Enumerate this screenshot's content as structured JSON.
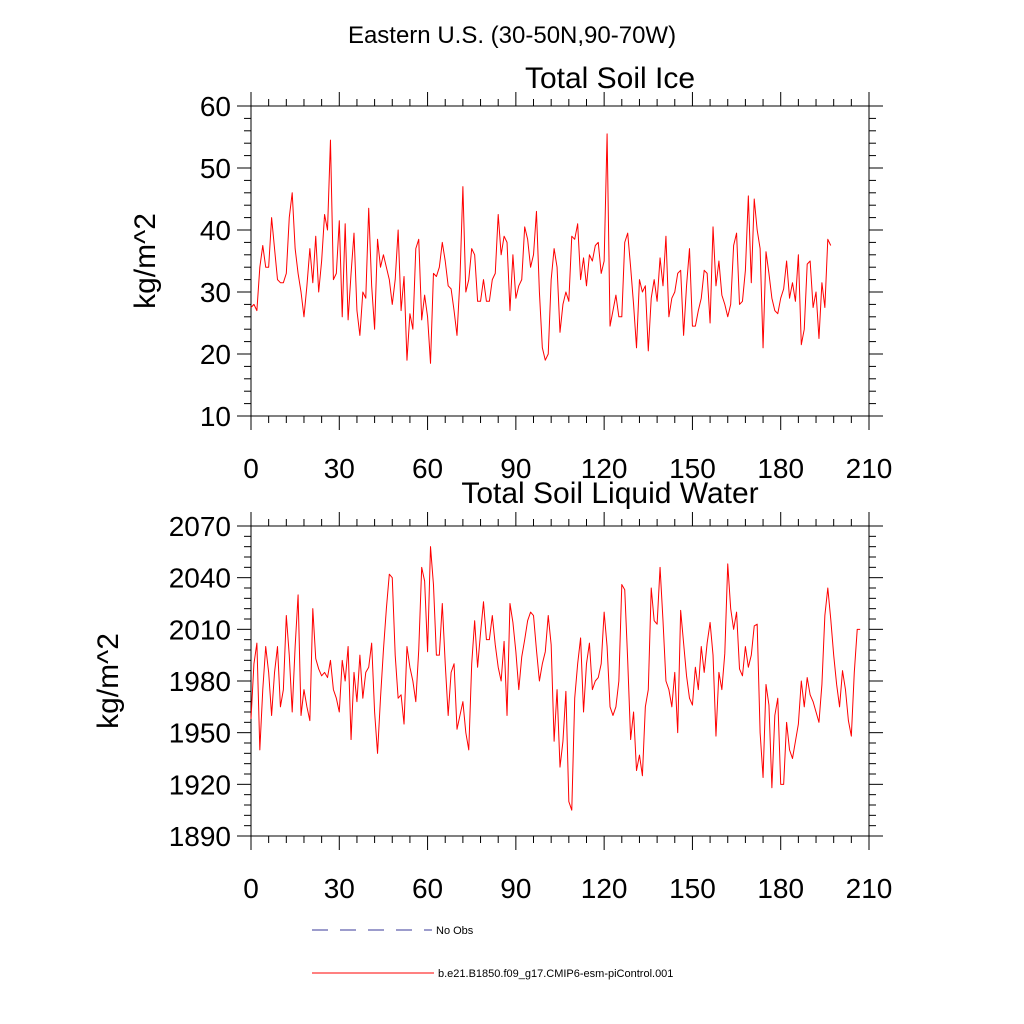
{
  "figure": {
    "suptitle": "Eastern U.S. (30-50N,90-70W)"
  },
  "colors": {
    "model": "#ff0000",
    "obs": "#3a3a9a",
    "axis": "#000000"
  },
  "legend": {
    "obs_label": "No Obs",
    "model_label": "b.e21.B1850.f09_g17.CMIP6-esm-piControl.001",
    "placement": "bottom-center"
  },
  "chart_data": [
    {
      "type": "line",
      "title": "Total Soil Ice",
      "xlabel": "",
      "ylabel": "kg/m^2",
      "xlim": [
        0,
        210
      ],
      "ylim": [
        10,
        60
      ],
      "xticks": [
        0,
        30,
        60,
        90,
        120,
        150,
        180,
        210
      ],
      "yticks": [
        10,
        20,
        30,
        40,
        50,
        60
      ],
      "x_start": 0,
      "series": [
        {
          "name": "b.e21.B1850.f09_g17.CMIP6-esm-piControl.001",
          "values": [
            27.5,
            28,
            27,
            34,
            37.5,
            34,
            34,
            42,
            37,
            32,
            31.5,
            31.5,
            33,
            42,
            46,
            37,
            33,
            30,
            26,
            31,
            37,
            31.5,
            39,
            30,
            35,
            42.5,
            40,
            54.5,
            32,
            33,
            41.5,
            26,
            41,
            25.5,
            33,
            39.5,
            27,
            23,
            30,
            29,
            43.5,
            31,
            24,
            38.5,
            34,
            36,
            34,
            32,
            28,
            32,
            40,
            27,
            32.5,
            19,
            26.5,
            24,
            37,
            38.5,
            25.5,
            29.5,
            26,
            18.5,
            33,
            32.5,
            34,
            38,
            35,
            31,
            30.5,
            27,
            23,
            32,
            47,
            30,
            32,
            37,
            36,
            28.5,
            28.5,
            32,
            28.5,
            28.5,
            32,
            33,
            42.5,
            36,
            39,
            38,
            27,
            36,
            29,
            31,
            32,
            40.5,
            38.5,
            34,
            36,
            43,
            30,
            21,
            19,
            20,
            32,
            37,
            34,
            23.5,
            28,
            30,
            28.5,
            39,
            38.5,
            41,
            32,
            35.5,
            31,
            36,
            35,
            37.5,
            38,
            33,
            35,
            55.5,
            24.5,
            27,
            29.5,
            26,
            26,
            38,
            39.5,
            34,
            28,
            21,
            32,
            30,
            31,
            20.5,
            29,
            32,
            28.5,
            35.5,
            31,
            39,
            26,
            29,
            30,
            33,
            33.5,
            23,
            31,
            37,
            24.5,
            24.5,
            27,
            29,
            33.5,
            33,
            25,
            40.5,
            31,
            35,
            29.5,
            28,
            26,
            28,
            37.5,
            39.5,
            28,
            28.5,
            33.5,
            45.5,
            31.5,
            45,
            40,
            37,
            21,
            36.5,
            33,
            29,
            27,
            26.5,
            29,
            30.5,
            35,
            29,
            31.5,
            28.5,
            36,
            21.5,
            24,
            34.5,
            35,
            27.5,
            30,
            22.5,
            31.5,
            27.5,
            38.5,
            37.5
          ]
        }
      ]
    },
    {
      "type": "line",
      "title": "Total Soil Liquid Water",
      "xlabel": "",
      "ylabel": "kg/m^2",
      "xlim": [
        0,
        210
      ],
      "ylim": [
        1890,
        2070
      ],
      "xticks": [
        0,
        30,
        60,
        90,
        120,
        150,
        180,
        210
      ],
      "yticks": [
        1890,
        1920,
        1950,
        1980,
        2010,
        2040,
        2070
      ],
      "x_start": 0,
      "series": [
        {
          "name": "b.e21.B1850.f09_g17.CMIP6-esm-piControl.001",
          "values": [
            1958,
            1990,
            2002,
            1940,
            1975,
            2000,
            1985,
            1960,
            1985,
            2000,
            1965,
            1975,
            2018,
            1995,
            1962,
            2000,
            2030,
            1960,
            1975,
            1965,
            1957,
            2022,
            1993,
            1987,
            1983,
            1985,
            1982,
            1992,
            1975,
            1970,
            1962,
            1992,
            1980,
            2000,
            1946,
            1985,
            1968,
            1995,
            1970,
            1985,
            1988,
            2002,
            1962,
            1938,
            1970,
            1998,
            2022,
            2042,
            2040,
            1995,
            1970,
            1972,
            1955,
            2000,
            1988,
            1980,
            1968,
            1998,
            2046,
            2038,
            1997,
            2058,
            2036,
            1995,
            1995,
            2025,
            1990,
            1960,
            1985,
            1990,
            1952,
            1960,
            1968,
            1950,
            1940,
            1990,
            2015,
            1988,
            2008,
            2026,
            2004,
            2004,
            2018,
            2001,
            1988,
            1980,
            2003,
            1960,
            2025,
            2014,
            1997,
            1975,
            1994,
            2004,
            2015,
            2020,
            2018,
            1998,
            1980,
            1990,
            1997,
            2018,
            2001,
            1945,
            1975,
            1930,
            1945,
            1974,
            1910,
            1905,
            1970,
            1990,
            2005,
            1962,
            1990,
            2002,
            1975,
            1980,
            1982,
            1990,
            2020,
            2000,
            1965,
            1960,
            1965,
            1980,
            2036,
            2033,
            1992,
            1946,
            1962,
            1928,
            1937,
            1925,
            1965,
            1975,
            2034,
            2015,
            2013,
            2046,
            2015,
            1980,
            1975,
            1965,
            1985,
            1950,
            2021,
            2002,
            1983,
            1970,
            1966,
            1988,
            1975,
            2000,
            1985,
            2002,
            2014,
            1995,
            1948,
            1985,
            1975,
            1996,
            2048,
            2022,
            2010,
            2020,
            1987,
            1983,
            2000,
            1988,
            1995,
            2012,
            2013,
            1950,
            1924,
            1978,
            1966,
            1918,
            1960,
            1970,
            1920,
            1920,
            1956,
            1940,
            1935,
            1945,
            1955,
            1980,
            1965,
            1982,
            1972,
            1968,
            1962,
            1956,
            1978,
            2018,
            2034,
            2016,
            1995,
            1978,
            1965,
            1986,
            1975,
            1957,
            1948,
            1985,
            2010,
            2010
          ]
        }
      ]
    }
  ]
}
